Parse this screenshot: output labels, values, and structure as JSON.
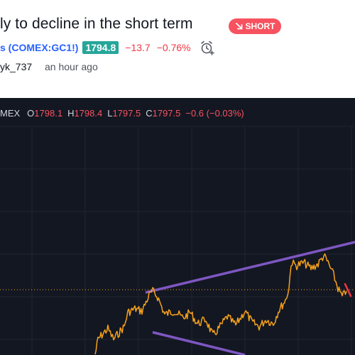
{
  "idea": {
    "title": "ly to decline in the short term",
    "badge": "SHORT",
    "symbol": "s (COMEX:GC1!)",
    "price": "1794.8",
    "change": "−13.7",
    "change_pct": "−0.76%",
    "author": "yk_737",
    "time": "an hour ago"
  },
  "legend": {
    "exchange": "MEX",
    "o_label": "O",
    "o": "1798.1",
    "h_label": "H",
    "h": "1798.4",
    "l_label": "L",
    "l": "1797.5",
    "c_label": "C",
    "c": "1797.5",
    "change": "−0.6 (−0.03%)"
  },
  "colors": {
    "background": "#131722",
    "price_line": "#f7a21b",
    "trend_line": "#7e57c2",
    "short_arrow": "#f23645",
    "negative": "#f23645",
    "positive_badge": "#26a69a",
    "link": "#2962ff"
  },
  "icons": {
    "badge_icon": "arrow-down-right-icon",
    "alert": "alarm-clock-plus-icon"
  }
}
